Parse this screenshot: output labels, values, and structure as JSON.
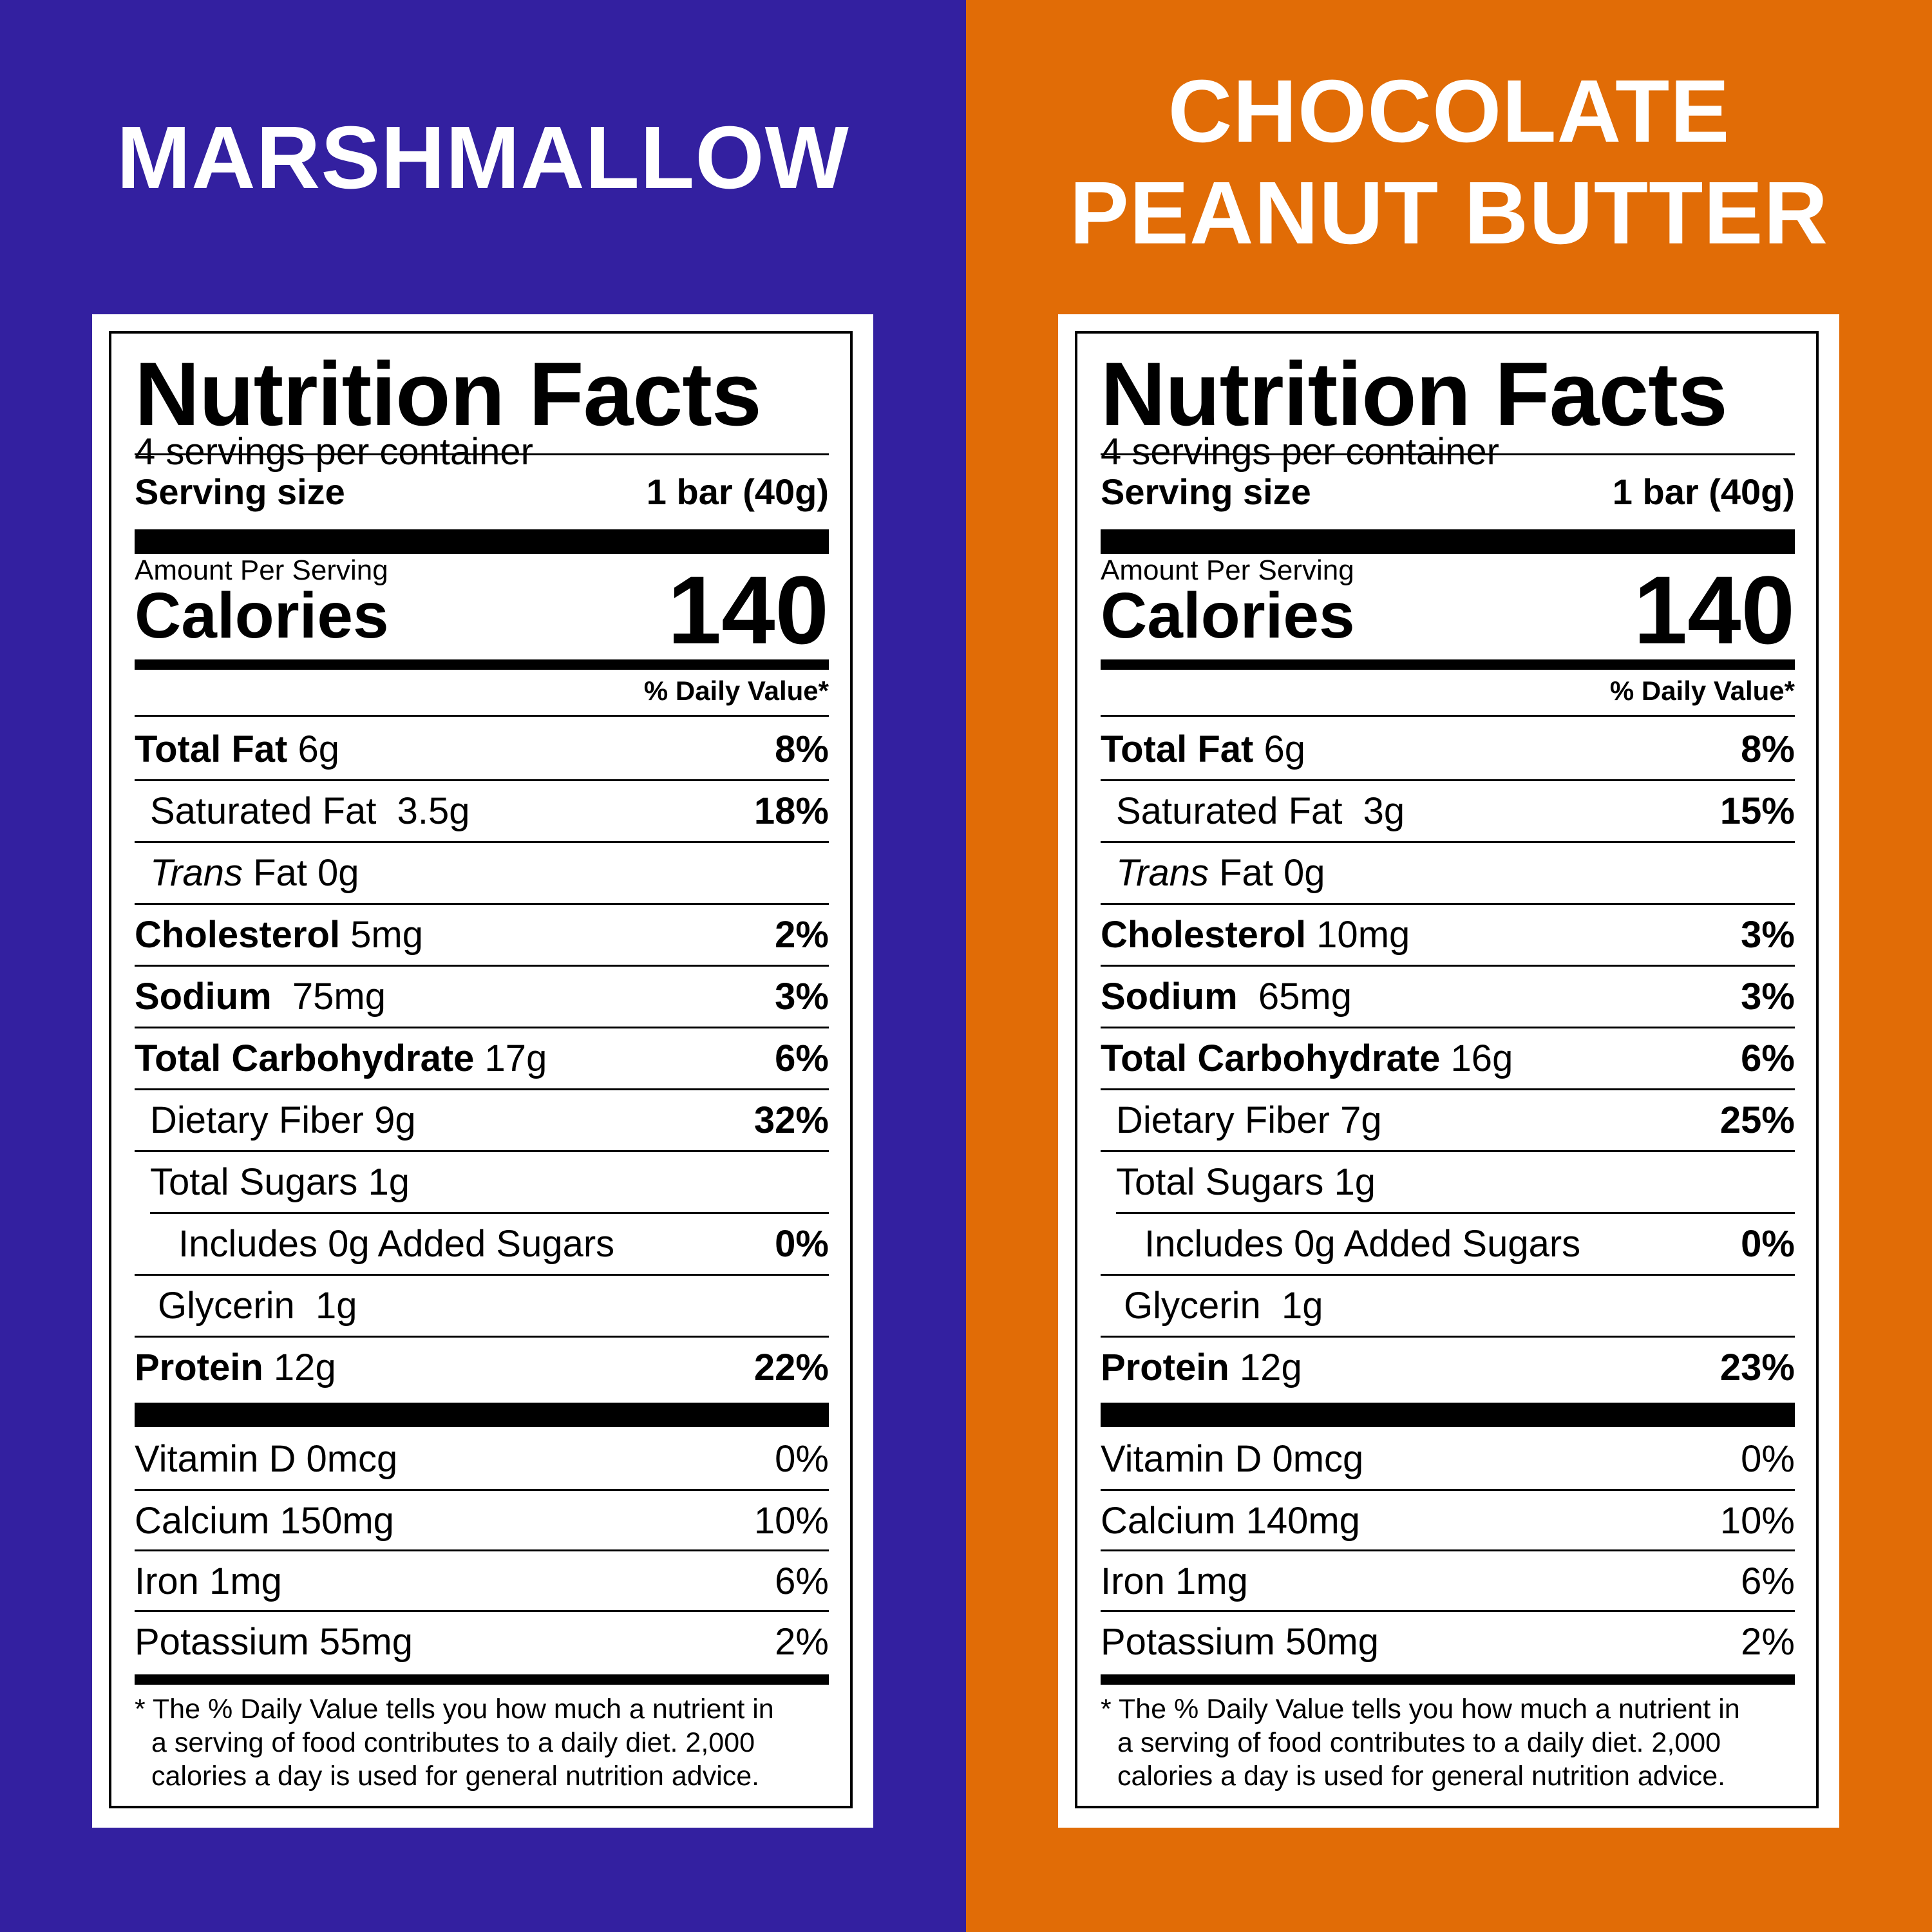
{
  "colors": {
    "left_bg": "#3320A0",
    "right_bg": "#E16C06",
    "text": "#000000",
    "card": "#FFFFFF"
  },
  "panels": [
    {
      "flavor_lines": [
        "MARSHMALLOW"
      ],
      "label": {
        "title": "Nutrition Facts",
        "servings_per_container": "4 servings per container",
        "serving_size_label": "Serving size",
        "serving_size_value": "1 bar (40g)",
        "amount_per_serving": "Amount Per Serving",
        "calories_label": "Calories",
        "calories_value": "140",
        "dv_header": "% Daily Value*",
        "rows": [
          {
            "bold": "Total Fat",
            "amount": " 6g",
            "pct": "8%"
          },
          {
            "name": "Saturated Fat  3.5g",
            "pct": "18%"
          },
          {
            "italic": "Trans",
            "name": " Fat 0g",
            "pct": ""
          },
          {
            "bold": "Cholesterol",
            "amount": " 5mg",
            "pct": "2%"
          },
          {
            "bold": "Sodium",
            "amount": "  75mg",
            "pct": "3%"
          },
          {
            "bold": "Total Carbohydrate",
            "amount": " 17g",
            "pct": "6%"
          },
          {
            "name": "Dietary Fiber 9g",
            "pct": "32%"
          },
          {
            "name": "Total Sugars 1g",
            "pct": ""
          },
          {
            "name": "Includes 0g Added Sugars",
            "pct": "0%"
          },
          {
            "name": "Glycerin  1g",
            "pct": ""
          },
          {
            "bold": "Protein",
            "amount": " 12g",
            "pct": "22%"
          }
        ],
        "vitamins": [
          {
            "name": "Vitamin D 0mcg",
            "pct": "0%"
          },
          {
            "name": "Calcium 150mg",
            "pct": "10%"
          },
          {
            "name": "Iron 1mg",
            "pct": "6%"
          },
          {
            "name": "Potassium 55mg",
            "pct": "2%"
          }
        ],
        "footnote": [
          "* The % Daily Value tells you how much a nutrient in",
          "a serving of food contributes to a daily diet. 2,000",
          "calories a day is used for general nutrition advice."
        ]
      }
    },
    {
      "flavor_lines": [
        "CHOCOLATE",
        "PEANUT BUTTER"
      ],
      "label": {
        "title": "Nutrition Facts",
        "servings_per_container": "4 servings per container",
        "serving_size_label": "Serving size",
        "serving_size_value": "1 bar (40g)",
        "amount_per_serving": "Amount Per Serving",
        "calories_label": "Calories",
        "calories_value": "140",
        "dv_header": "% Daily Value*",
        "rows": [
          {
            "bold": "Total Fat",
            "amount": " 6g",
            "pct": "8%"
          },
          {
            "name": "Saturated Fat  3g",
            "pct": "15%"
          },
          {
            "italic": "Trans",
            "name": " Fat 0g",
            "pct": ""
          },
          {
            "bold": "Cholesterol",
            "amount": " 10mg",
            "pct": "3%"
          },
          {
            "bold": "Sodium",
            "amount": "  65mg",
            "pct": "3%"
          },
          {
            "bold": "Total Carbohydrate",
            "amount": " 16g",
            "pct": "6%"
          },
          {
            "name": "Dietary Fiber 7g",
            "pct": "25%"
          },
          {
            "name": "Total Sugars 1g",
            "pct": ""
          },
          {
            "name": "Includes 0g Added Sugars",
            "pct": "0%"
          },
          {
            "name": "Glycerin  1g",
            "pct": ""
          },
          {
            "bold": "Protein",
            "amount": " 12g",
            "pct": "23%"
          }
        ],
        "vitamins": [
          {
            "name": "Vitamin D 0mcg",
            "pct": "0%"
          },
          {
            "name": "Calcium 140mg",
            "pct": "10%"
          },
          {
            "name": "Iron 1mg",
            "pct": "6%"
          },
          {
            "name": "Potassium 50mg",
            "pct": "2%"
          }
        ],
        "footnote": [
          "* The % Daily Value tells you how much a nutrient in",
          "a serving of food contributes to a daily diet. 2,000",
          "calories a day is used for general nutrition advice."
        ]
      }
    }
  ]
}
